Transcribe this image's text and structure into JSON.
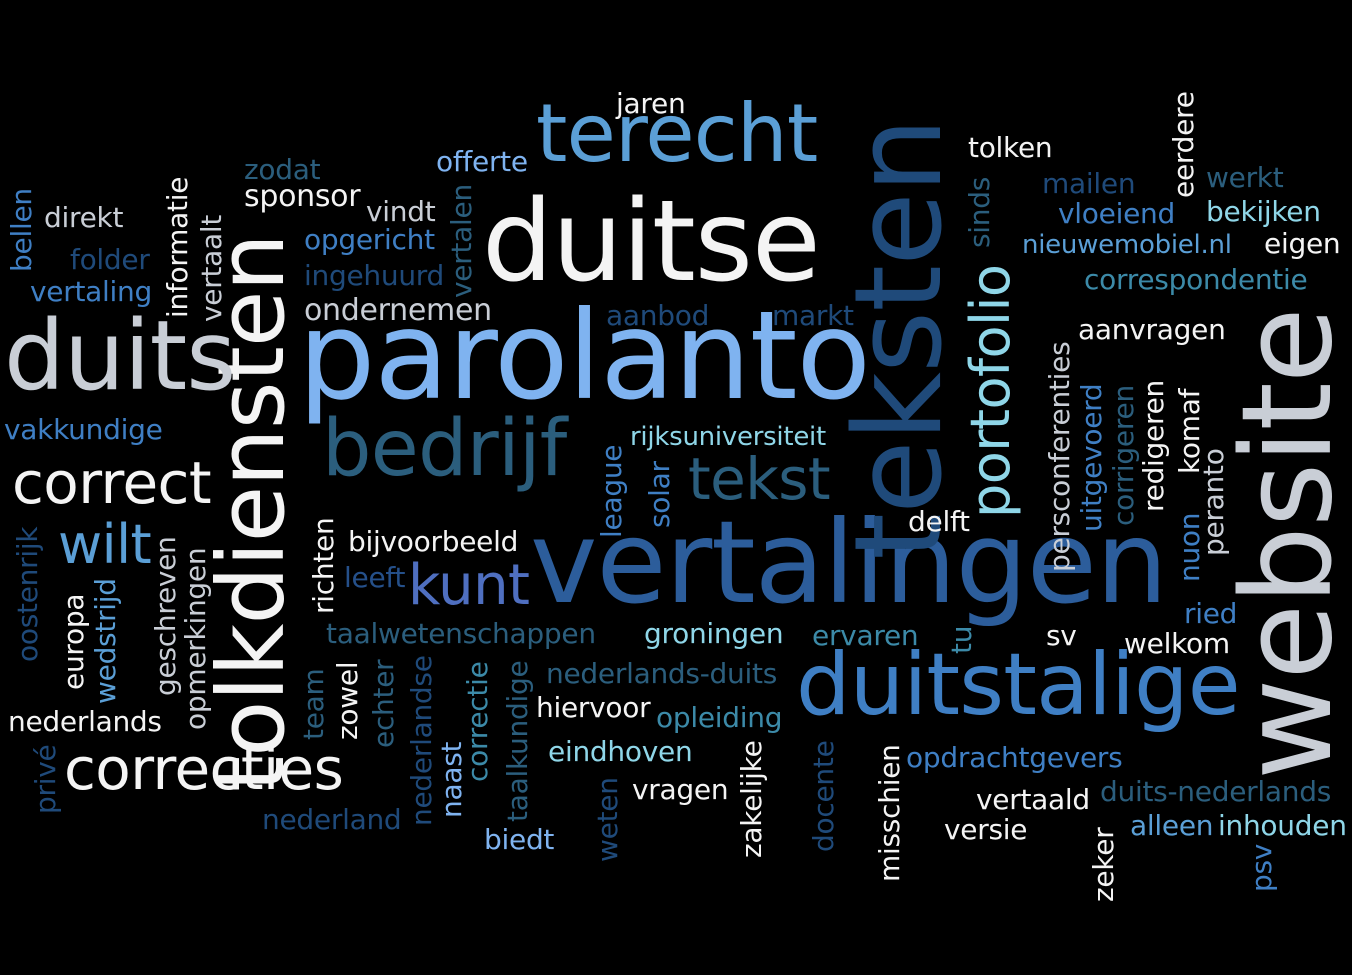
{
  "words": {
    "duitse": "duitse",
    "parolanto": "parolanto",
    "vertalingen": "vertalingen",
    "teksten": "teksten",
    "website": "website",
    "tolkdiensten": "tolkdiensten",
    "duits": "duits",
    "duitstalige": "duitstalige",
    "terecht": "terecht",
    "bedrijf": "bedrijf",
    "correct": "correct",
    "correcties": "correcties",
    "tekst": "tekst",
    "portofolio": "portofolio",
    "kunt": "kunt",
    "wilt": "wilt",
    "jaren": "jaren",
    "offerte": "offerte",
    "zodat": "zodat",
    "sponsor": "sponsor",
    "vindt": "vindt",
    "opgericht": "opgericht",
    "ingehuurd": "ingehuurd",
    "vertalen": "vertalen",
    "ondernemen": "ondernemen",
    "direkt": "direkt",
    "bellen": "bellen",
    "folder": "folder",
    "vertaling": "vertaling",
    "informatie": "informatie",
    "vertaalt": "vertaalt",
    "vakkundige": "vakkundige",
    "aanbod": "aanbod",
    "markt": "markt",
    "tolken": "tolken",
    "sinds": "sinds",
    "eerdere": "eerdere",
    "mailen": "mailen",
    "werkt": "werkt",
    "vloeiend": "vloeiend",
    "bekijken": "bekijken",
    "nieuwemobiel": "nieuwemobiel.nl",
    "eigen": "eigen",
    "correspondentie": "correspondentie",
    "aanvragen": "aanvragen",
    "persconferenties": "persconferenties",
    "uitgevoerd": "uitgevoerd",
    "corrigeren": "corrigeren",
    "redigeren": "redigeren",
    "komaf": "komaf",
    "peranto": "peranto",
    "nuon": "nuon",
    "rijksuniversiteit": "rijksuniversiteit",
    "league": "league",
    "solar": "solar",
    "delft": "delft",
    "bijvoorbeeld": "bijvoorbeeld",
    "leeft": "leeft",
    "richten": "richten",
    "oostenrijk": "oostenrijk",
    "europa": "europa",
    "wedstrijd": "wedstrijd",
    "geschreven": "geschreven",
    "opmerkingen": "opmerkingen",
    "taalwetenschappen": "taalwetenschappen",
    "groningen": "groningen",
    "ervaren": "ervaren",
    "tu": "tu",
    "sv": "sv",
    "welkom": "welkom",
    "ried": "ried",
    "team": "team",
    "zowel": "zowel",
    "echter": "echter",
    "nederlandse": "nederlandse",
    "correctie": "correctie",
    "nederlands_duits": "nederlands-duits",
    "hiervoor": "hiervoor",
    "opleiding": "opleiding",
    "nederlands": "nederlands",
    "prive": "privé",
    "naast": "naast",
    "taalkundige": "taalkundige",
    "eindhoven": "eindhoven",
    "zakelijke": "zakelijke",
    "docente": "docente",
    "opdrachtgevers": "opdrachtgevers",
    "vragen": "vragen",
    "vertaald": "vertaald",
    "duits_nederlands": "duits-nederlands",
    "nederland": "nederland",
    "weten": "weten",
    "biedt": "biedt",
    "misschien": "misschien",
    "versie": "versie",
    "zeker": "zeker",
    "alleen": "alleen",
    "inhouden": "inhouden",
    "psv": "psv"
  }
}
